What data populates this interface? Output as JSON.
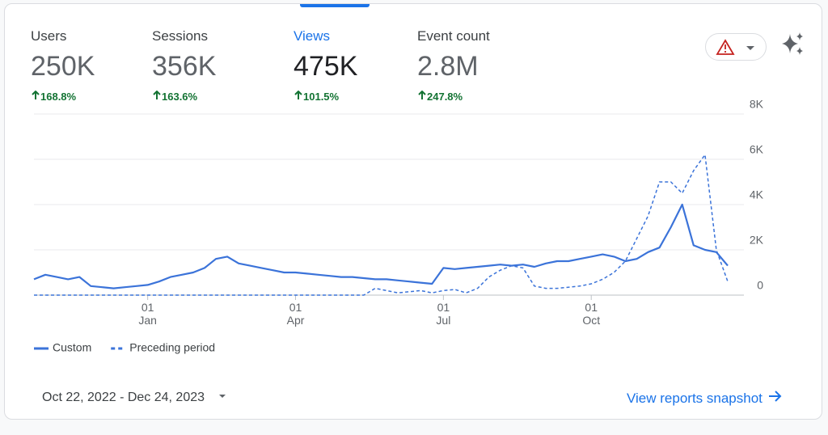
{
  "tabs": [
    {
      "label": "Users",
      "value": "250K",
      "change": "168.8%",
      "selected": false
    },
    {
      "label": "Sessions",
      "value": "356K",
      "change": "163.6%",
      "selected": false
    },
    {
      "label": "Views",
      "value": "475K",
      "change": "101.5%",
      "selected": true
    },
    {
      "label": "Event count",
      "value": "2.8M",
      "change": "247.8%",
      "selected": false
    }
  ],
  "chart_data": {
    "type": "line",
    "categories": [
      null,
      null,
      null,
      null,
      null,
      null,
      null,
      null,
      null,
      null,
      "01 Jan",
      null,
      null,
      null,
      null,
      null,
      null,
      null,
      null,
      null,
      null,
      null,
      null,
      "01 Apr",
      null,
      null,
      null,
      null,
      null,
      null,
      null,
      null,
      null,
      null,
      null,
      null,
      "01 Jul",
      null,
      null,
      null,
      null,
      null,
      null,
      null,
      null,
      null,
      null,
      null,
      null,
      "01 Oct",
      null,
      null,
      null,
      null,
      null,
      null,
      null,
      null,
      null,
      null,
      null,
      null
    ],
    "series": [
      {
        "name": "Custom",
        "color": "#3b73d9",
        "line_style": "solid",
        "values": [
          700,
          900,
          800,
          700,
          800,
          400,
          350,
          300,
          350,
          400,
          450,
          600,
          800,
          900,
          1000,
          1200,
          1600,
          1700,
          1400,
          1300,
          1200,
          1100,
          1000,
          1000,
          950,
          900,
          850,
          800,
          800,
          750,
          700,
          700,
          650,
          600,
          550,
          500,
          1200,
          1150,
          1200,
          1250,
          1300,
          1350,
          1300,
          1350,
          1250,
          1400,
          1500,
          1500,
          1600,
          1700,
          1800,
          1700,
          1500,
          1600,
          1900,
          2100,
          3000,
          4000,
          2200,
          2000,
          1900,
          1300
        ]
      },
      {
        "name": "Preceding period",
        "color": "#3b73d9",
        "line_style": "dashed",
        "values": [
          0,
          0,
          0,
          0,
          0,
          0,
          0,
          0,
          0,
          0,
          0,
          0,
          0,
          0,
          0,
          0,
          0,
          0,
          0,
          0,
          0,
          0,
          0,
          0,
          0,
          0,
          0,
          0,
          0,
          0,
          300,
          200,
          100,
          150,
          200,
          100,
          200,
          250,
          100,
          300,
          800,
          1100,
          1300,
          1200,
          400,
          300,
          300,
          350,
          400,
          500,
          700,
          1000,
          1500,
          2500,
          3500,
          5000,
          5000,
          4500,
          5500,
          6200,
          2000,
          600
        ]
      }
    ],
    "ylim": [
      0,
      8000
    ],
    "yticks": [
      0,
      {
        "value": 2000,
        "label": "2K"
      },
      {
        "value": 4000,
        "label": "4K"
      },
      {
        "value": 6000,
        "label": "6K"
      },
      {
        "value": 8000,
        "label": "8K"
      }
    ],
    "grid": true
  },
  "date_range": "Oct 22, 2022 - Dec 24, 2023",
  "link": "View reports snapshot"
}
